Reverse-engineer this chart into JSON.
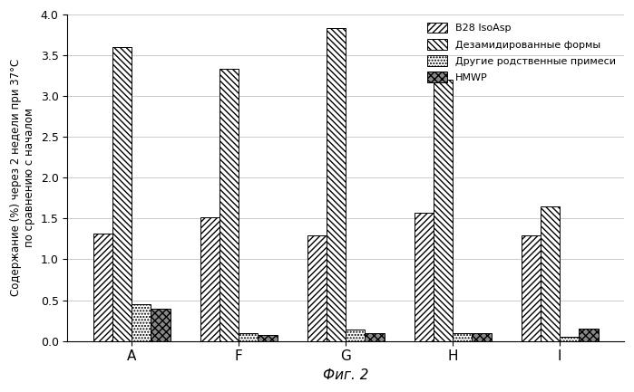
{
  "categories": [
    "A",
    "F",
    "G",
    "H",
    "I"
  ],
  "series": {
    "B28 IsoAsp": [
      1.32,
      1.52,
      1.29,
      1.57,
      1.29
    ],
    "Дезамидированные формы": [
      3.6,
      3.33,
      3.83,
      3.2,
      1.65
    ],
    "Другие родственные примеси": [
      0.45,
      0.1,
      0.14,
      0.1,
      0.05
    ],
    "HMWP": [
      0.4,
      0.07,
      0.09,
      0.09,
      0.15
    ]
  },
  "hatch_patterns": [
    "/////",
    "\\\\\\\\\\",
    ".....",
    "XXXXX"
  ],
  "bar_colors": [
    "white",
    "white",
    "white",
    "gray"
  ],
  "edge_colors": [
    "black",
    "black",
    "black",
    "black"
  ],
  "ylim": [
    0.0,
    4.0
  ],
  "yticks": [
    0.0,
    0.5,
    1.0,
    1.5,
    2.0,
    2.5,
    3.0,
    3.5,
    4.0
  ],
  "ylabel": "Содержание (%) через 2 недели при 37°C\nпо сравнению с началом",
  "xlabel": "Фиг. 2",
  "legend_labels": [
    "B28 IsoAsp",
    "Дезамидированные формы",
    "Другие родственные примеси",
    "HMWP"
  ],
  "title": "",
  "bar_width": 0.18,
  "background_color": "white",
  "grid_color": "#cccccc"
}
